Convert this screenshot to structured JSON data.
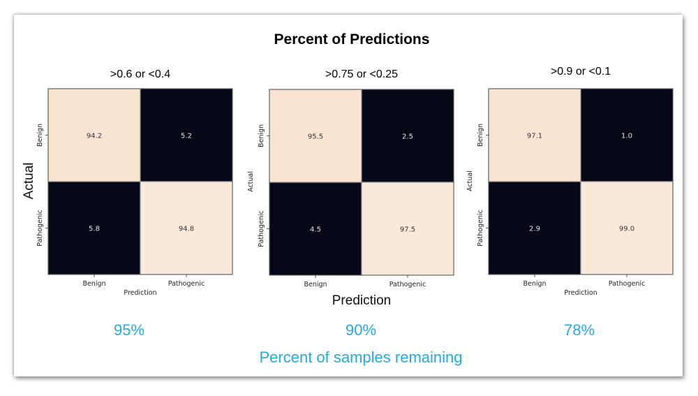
{
  "title": "Percent of Predictions",
  "footer_label": "Percent of samples remaining",
  "colors": {
    "high": "#fbe9da",
    "high_alt": "#f9e4d2",
    "low": "#050817",
    "accent": "#27a9e1"
  },
  "chart_data": [
    {
      "type": "heatmap",
      "threshold_label": ">0.6  or <0.4",
      "rows": [
        "Benign",
        "Pathogenic"
      ],
      "cols": [
        "Benign",
        "Pathogenic"
      ],
      "values": [
        [
          94.2,
          5.2
        ],
        [
          5.8,
          94.8
        ]
      ],
      "value_labels": [
        [
          "94.2",
          "5.2"
        ],
        [
          "5.8",
          "94.8"
        ]
      ],
      "xlabel": "Prediction",
      "ylabel": "Actual",
      "remaining": "95%"
    },
    {
      "type": "heatmap",
      "threshold_label": ">0.75  or <0.25",
      "rows": [
        "Benign",
        "Pathogenic"
      ],
      "cols": [
        "Benign",
        "Pathogenic"
      ],
      "values": [
        [
          95.5,
          2.5
        ],
        [
          4.5,
          97.5
        ]
      ],
      "value_labels": [
        [
          "95.5",
          "2.5"
        ],
        [
          "4.5",
          "97.5"
        ]
      ],
      "xlabel": "Prediction",
      "ylabel": "Actual",
      "remaining": "90%"
    },
    {
      "type": "heatmap",
      "threshold_label": ">0.9  or <0.1",
      "rows": [
        "Benign",
        "Pathogenic"
      ],
      "cols": [
        "Benign",
        "Pathogenic"
      ],
      "values": [
        [
          97.1,
          1.0
        ],
        [
          2.9,
          99.0
        ]
      ],
      "value_labels": [
        [
          "97.1",
          "1.0"
        ],
        [
          "2.9",
          "99.0"
        ]
      ],
      "xlabel": "Prediction",
      "ylabel": "Actual",
      "remaining": "78%"
    }
  ]
}
